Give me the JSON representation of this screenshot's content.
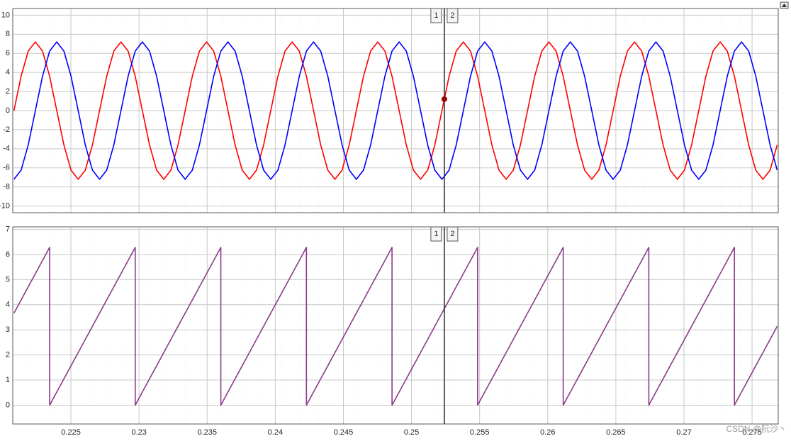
{
  "chart_data": [
    {
      "type": "line",
      "x": [
        0.220819,
        0.221343,
        0.221866,
        0.22239,
        0.222914,
        0.223437,
        0.223961,
        0.224484,
        0.225008,
        0.225532,
        0.226055,
        0.226579,
        0.227102,
        0.227626,
        0.22815,
        0.228673,
        0.229197,
        0.22972,
        0.230244,
        0.230768,
        0.231291,
        0.231815,
        0.232338,
        0.232862,
        0.233386,
        0.233909,
        0.234433,
        0.234956,
        0.23548,
        0.236004,
        0.236527,
        0.237051,
        0.237574,
        0.238098,
        0.238622,
        0.239145,
        0.239669,
        0.240192,
        0.240716,
        0.24124,
        0.241763,
        0.242287,
        0.24281,
        0.243334,
        0.243858,
        0.244381,
        0.244905,
        0.245428,
        0.245952,
        0.246476,
        0.246999,
        0.247523,
        0.248046,
        0.24857,
        0.249094,
        0.249617,
        0.250141,
        0.250664,
        0.251188,
        0.251712,
        0.252235,
        0.252759,
        0.253282,
        0.253806,
        0.25433,
        0.254853,
        0.255377,
        0.2559,
        0.256424,
        0.256948,
        0.257471,
        0.257995,
        0.258518,
        0.259042,
        0.259566,
        0.260089,
        0.260613,
        0.261136,
        0.26166,
        0.262184,
        0.262707,
        0.263231,
        0.263754,
        0.264278,
        0.264802,
        0.265325,
        0.265849,
        0.266372,
        0.266896,
        0.26742,
        0.267943,
        0.268467,
        0.26899,
        0.269514,
        0.270038,
        0.270561,
        0.271085,
        0.271608,
        0.272132,
        0.272656,
        0.273179,
        0.273703,
        0.274226,
        0.27475,
        0.275274,
        0.275797,
        0.276321,
        0.276844
      ],
      "series": [
        {
          "color": "#ff0000",
          "values": [
            0,
            3.6,
            6.24,
            7.2,
            6.24,
            3.6,
            0,
            -3.6,
            -6.24,
            -7.2,
            -6.24,
            -3.6,
            0,
            3.6,
            6.24,
            7.2,
            6.24,
            3.6,
            0,
            -3.6,
            -6.24,
            -7.2,
            -6.24,
            -3.6,
            0,
            3.6,
            6.24,
            7.2,
            6.24,
            3.6,
            0,
            -3.6,
            -6.24,
            -7.2,
            -6.24,
            -3.6,
            0,
            3.6,
            6.24,
            7.2,
            6.24,
            3.6,
            0,
            -3.6,
            -6.24,
            -7.2,
            -6.24,
            -3.6,
            0,
            3.6,
            6.24,
            7.2,
            6.24,
            3.6,
            0,
            -3.6,
            -6.24,
            -7.2,
            -6.24,
            -3.6,
            0,
            3.6,
            6.24,
            7.2,
            6.24,
            3.6,
            0,
            -3.6,
            -6.24,
            -7.2,
            -6.24,
            -3.6,
            0,
            3.6,
            6.24,
            7.2,
            6.24,
            3.6,
            0,
            -3.6,
            -6.24,
            -7.2,
            -6.24,
            -3.6,
            0,
            3.6,
            6.24,
            7.2,
            6.24,
            3.6,
            0,
            -3.6,
            -6.24,
            -7.2,
            -6.24,
            -3.6,
            0,
            3.6,
            6.24,
            7.2,
            6.24,
            3.6,
            0,
            -3.6,
            -6.24,
            -7.2,
            -6.24,
            -3.6
          ]
        },
        {
          "color": "#0000ff",
          "values": [
            -7.2,
            -6.24,
            -3.6,
            0,
            3.6,
            6.24,
            7.2,
            6.24,
            3.6,
            0,
            -3.6,
            -6.24,
            -7.2,
            -6.24,
            -3.6,
            0,
            3.6,
            6.24,
            7.2,
            6.24,
            3.6,
            0,
            -3.6,
            -6.24,
            -7.2,
            -6.24,
            -3.6,
            0,
            3.6,
            6.24,
            7.2,
            6.24,
            3.6,
            0,
            -3.6,
            -6.24,
            -7.2,
            -6.24,
            -3.6,
            0,
            3.6,
            6.24,
            7.2,
            6.24,
            3.6,
            0,
            -3.6,
            -6.24,
            -7.2,
            -6.24,
            -3.6,
            0,
            3.6,
            6.24,
            7.2,
            6.24,
            3.6,
            0,
            -3.6,
            -6.24,
            -7.2,
            -6.24,
            -3.6,
            0,
            3.6,
            6.24,
            7.2,
            6.24,
            3.6,
            0,
            -3.6,
            -6.24,
            -7.2,
            -6.24,
            -3.6,
            0,
            3.6,
            6.24,
            7.2,
            6.24,
            3.6,
            0,
            -3.6,
            -6.24,
            -7.2,
            -6.24,
            -3.6,
            0,
            3.6,
            6.24,
            7.2,
            6.24,
            3.6,
            0,
            -3.6,
            -6.24,
            -7.2,
            -6.24,
            -3.6,
            0,
            3.6,
            6.24,
            7.2,
            6.24,
            3.6,
            0,
            -3.6,
            -6.24
          ]
        }
      ],
      "xlim": [
        0.22073,
        0.27692
      ],
      "ylim": [
        -10.7,
        10.7
      ],
      "yticks": [
        -10,
        -8,
        -6,
        -4,
        -2,
        0,
        2,
        4,
        6,
        8,
        10
      ],
      "grid": true,
      "cursor_x": 0.25241,
      "cursor_labels": [
        "1",
        "2"
      ],
      "marker": {
        "x": 0.25241,
        "y": 1.2,
        "color": "#a00000"
      }
    },
    {
      "type": "line",
      "x": [
        0.220819,
        0.221343,
        0.221866,
        0.22239,
        0.222914,
        0.223437,
        0.223437,
        0.223961,
        0.224484,
        0.225008,
        0.225532,
        0.226055,
        0.226579,
        0.227102,
        0.227626,
        0.22815,
        0.228673,
        0.229197,
        0.22972,
        0.22972,
        0.230244,
        0.230768,
        0.231291,
        0.231815,
        0.232338,
        0.232862,
        0.233386,
        0.233909,
        0.234433,
        0.234956,
        0.23548,
        0.236004,
        0.236004,
        0.236527,
        0.237051,
        0.237574,
        0.238098,
        0.238622,
        0.239145,
        0.239669,
        0.240192,
        0.240716,
        0.24124,
        0.241763,
        0.242287,
        0.242287,
        0.24281,
        0.243334,
        0.243858,
        0.244381,
        0.244905,
        0.245428,
        0.245952,
        0.246476,
        0.246999,
        0.247523,
        0.248046,
        0.24857,
        0.24857,
        0.249094,
        0.249617,
        0.250141,
        0.250664,
        0.251188,
        0.251712,
        0.252235,
        0.252759,
        0.253282,
        0.253806,
        0.25433,
        0.254853,
        0.254853,
        0.255377,
        0.2559,
        0.256424,
        0.256948,
        0.257471,
        0.257995,
        0.258518,
        0.259042,
        0.259566,
        0.260089,
        0.260613,
        0.261136,
        0.261136,
        0.26166,
        0.262184,
        0.262707,
        0.263231,
        0.263754,
        0.264278,
        0.264802,
        0.265325,
        0.265849,
        0.266372,
        0.266896,
        0.26742,
        0.26742,
        0.267943,
        0.268467,
        0.26899,
        0.269514,
        0.270038,
        0.270561,
        0.271085,
        0.271608,
        0.272132,
        0.272656,
        0.273179,
        0.273703,
        0.273703,
        0.274226,
        0.27475,
        0.275274,
        0.275797,
        0.276321,
        0.276844
      ],
      "series": [
        {
          "color": "#8a3a8a",
          "values": [
            3.6652,
            4.1888,
            4.7124,
            5.236,
            5.7596,
            6.2832,
            0,
            0.5236,
            1.0472,
            1.5708,
            2.0944,
            2.618,
            3.1416,
            3.6652,
            4.1888,
            4.7124,
            5.236,
            5.7596,
            6.2832,
            0,
            0.5236,
            1.0472,
            1.5708,
            2.0944,
            2.618,
            3.1416,
            3.6652,
            4.1888,
            4.7124,
            5.236,
            5.7596,
            6.2832,
            0,
            0.5236,
            1.0472,
            1.5708,
            2.0944,
            2.618,
            3.1416,
            3.6652,
            4.1888,
            4.7124,
            5.236,
            5.7596,
            6.2832,
            0,
            0.5236,
            1.0472,
            1.5708,
            2.0944,
            2.618,
            3.1416,
            3.6652,
            4.1888,
            4.7124,
            5.236,
            5.7596,
            6.2832,
            0,
            0.5236,
            1.0472,
            1.5708,
            2.0944,
            2.618,
            3.1416,
            3.6652,
            4.1888,
            4.7124,
            5.236,
            5.7596,
            6.2832,
            0,
            0.5236,
            1.0472,
            1.5708,
            2.0944,
            2.618,
            3.1416,
            3.6652,
            4.1888,
            4.7124,
            5.236,
            5.7596,
            6.2832,
            0,
            0.5236,
            1.0472,
            1.5708,
            2.0944,
            2.618,
            3.1416,
            3.6652,
            4.1888,
            4.7124,
            5.236,
            5.7596,
            6.2832,
            0,
            0.5236,
            1.0472,
            1.5708,
            2.0944,
            2.618,
            3.1416,
            3.6652,
            4.1888,
            4.7124,
            5.236,
            5.7596,
            6.2832,
            0,
            0.5236,
            1.0472,
            1.5708,
            2.0944,
            2.618,
            3.1416
          ]
        }
      ],
      "xlim": [
        0.22073,
        0.27692
      ],
      "ylim": [
        -0.75,
        7.1
      ],
      "xticks": [
        0.225,
        0.23,
        0.235,
        0.24,
        0.245,
        0.25,
        0.255,
        0.26,
        0.265,
        0.27,
        0.275
      ],
      "yticks": [
        0,
        1,
        2,
        3,
        4,
        5,
        6,
        7
      ],
      "grid": true,
      "cursor_x": 0.25241,
      "cursor_labels": [
        "1",
        "2"
      ],
      "watermark": "CSDN @阮沙丶"
    }
  ]
}
